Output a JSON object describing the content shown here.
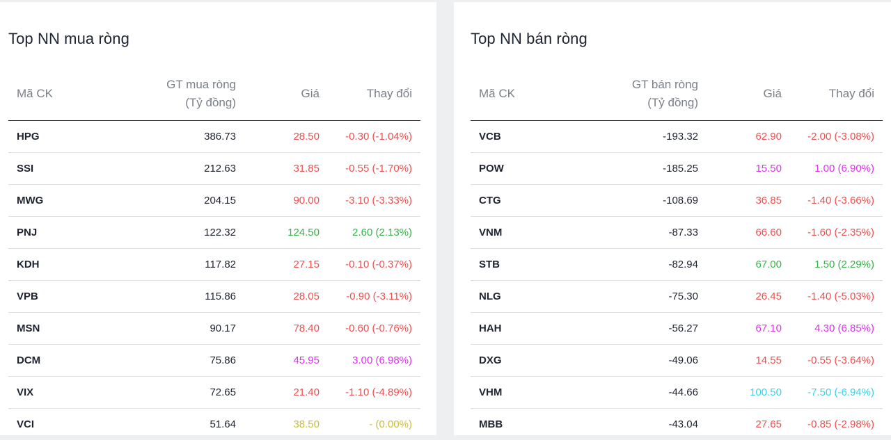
{
  "buy": {
    "title": "Top NN mua ròng",
    "headers": {
      "symbol": "Mã CK",
      "value_line1": "GT mua ròng",
      "value_line2": "(Tỷ đồng)",
      "price": "Giá",
      "change": "Thay đổi"
    },
    "rows": [
      {
        "symbol": "HPG",
        "value": "386.73",
        "price": "28.50",
        "change": "-0.30 (-1.04%)",
        "color": "red"
      },
      {
        "symbol": "SSI",
        "value": "212.63",
        "price": "31.85",
        "change": "-0.55 (-1.70%)",
        "color": "red"
      },
      {
        "symbol": "MWG",
        "value": "204.15",
        "price": "90.00",
        "change": "-3.10 (-3.33%)",
        "color": "red"
      },
      {
        "symbol": "PNJ",
        "value": "122.32",
        "price": "124.50",
        "change": "2.60 (2.13%)",
        "color": "green"
      },
      {
        "symbol": "KDH",
        "value": "117.82",
        "price": "27.15",
        "change": "-0.10 (-0.37%)",
        "color": "red"
      },
      {
        "symbol": "VPB",
        "value": "115.86",
        "price": "28.05",
        "change": "-0.90 (-3.11%)",
        "color": "red"
      },
      {
        "symbol": "MSN",
        "value": "90.17",
        "price": "78.40",
        "change": "-0.60 (-0.76%)",
        "color": "red"
      },
      {
        "symbol": "DCM",
        "value": "75.86",
        "price": "45.95",
        "change": "3.00 (6.98%)",
        "color": "magenta"
      },
      {
        "symbol": "VIX",
        "value": "72.65",
        "price": "21.40",
        "change": "-1.10 (-4.89%)",
        "color": "red"
      },
      {
        "symbol": "VCI",
        "value": "51.64",
        "price": "38.50",
        "change": "- (0.00%)",
        "color": "yellow"
      }
    ]
  },
  "sell": {
    "title": "Top NN bán ròng",
    "headers": {
      "symbol": "Mã CK",
      "value_line1": "GT bán ròng",
      "value_line2": "(Tỷ đồng)",
      "price": "Giá",
      "change": "Thay đổi"
    },
    "rows": [
      {
        "symbol": "VCB",
        "value": "-193.32",
        "price": "62.90",
        "change": "-2.00 (-3.08%)",
        "color": "red"
      },
      {
        "symbol": "POW",
        "value": "-185.25",
        "price": "15.50",
        "change": "1.00 (6.90%)",
        "color": "magenta"
      },
      {
        "symbol": "CTG",
        "value": "-108.69",
        "price": "36.85",
        "change": "-1.40 (-3.66%)",
        "color": "red"
      },
      {
        "symbol": "VNM",
        "value": "-87.33",
        "price": "66.60",
        "change": "-1.60 (-2.35%)",
        "color": "red"
      },
      {
        "symbol": "STB",
        "value": "-82.94",
        "price": "67.00",
        "change": "1.50 (2.29%)",
        "color": "green"
      },
      {
        "symbol": "NLG",
        "value": "-75.30",
        "price": "26.45",
        "change": "-1.40 (-5.03%)",
        "color": "red"
      },
      {
        "symbol": "HAH",
        "value": "-56.27",
        "price": "67.10",
        "change": "4.30 (6.85%)",
        "color": "magenta"
      },
      {
        "symbol": "DXG",
        "value": "-49.06",
        "price": "14.55",
        "change": "-0.55 (-3.64%)",
        "color": "red"
      },
      {
        "symbol": "VHM",
        "value": "-44.66",
        "price": "100.50",
        "change": "-7.50 (-6.94%)",
        "color": "cyan"
      },
      {
        "symbol": "MBB",
        "value": "-43.04",
        "price": "27.65",
        "change": "-0.85 (-2.98%)",
        "color": "red"
      }
    ]
  }
}
